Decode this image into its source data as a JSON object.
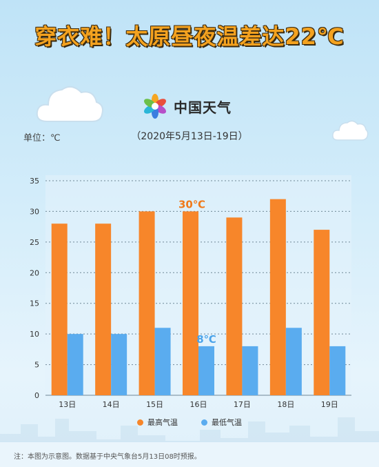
{
  "headline": "穿衣难！太原昼夜温差达22℃",
  "brand": {
    "name": "中国天气",
    "logo_icon": "china-weather-logo-icon"
  },
  "unit_label": "单位：℃",
  "date_range": "（2020年5月13日-19日）",
  "legend": [
    {
      "label": "最高气温",
      "color": "#f7862a"
    },
    {
      "label": "最低气温",
      "color": "#5aacef"
    }
  ],
  "footnote": "注：本图为示意图。数据基于中央气象台5月13日08时预报。",
  "chart_data": {
    "type": "bar",
    "categories": [
      "13日",
      "14日",
      "15日",
      "16日",
      "17日",
      "18日",
      "19日"
    ],
    "series": [
      {
        "name": "最高气温",
        "values": [
          28,
          28,
          30,
          30,
          29,
          32,
          27
        ],
        "color": "#f7862a"
      },
      {
        "name": "最低气温",
        "values": [
          10,
          10,
          11,
          8,
          8,
          11,
          8
        ],
        "color": "#5aacef"
      }
    ],
    "yticks": [
      "0",
      "5",
      "10",
      "15",
      "20",
      "25",
      "30",
      "35"
    ],
    "ylim": [
      0,
      35
    ],
    "grid": true,
    "annotations": [
      {
        "text": "30℃",
        "category": "16日",
        "series": "最高气温",
        "color": "#f07a1a"
      },
      {
        "text": "8℃",
        "category": "16日",
        "series": "最低气温",
        "color": "#4aa3ea"
      }
    ]
  }
}
